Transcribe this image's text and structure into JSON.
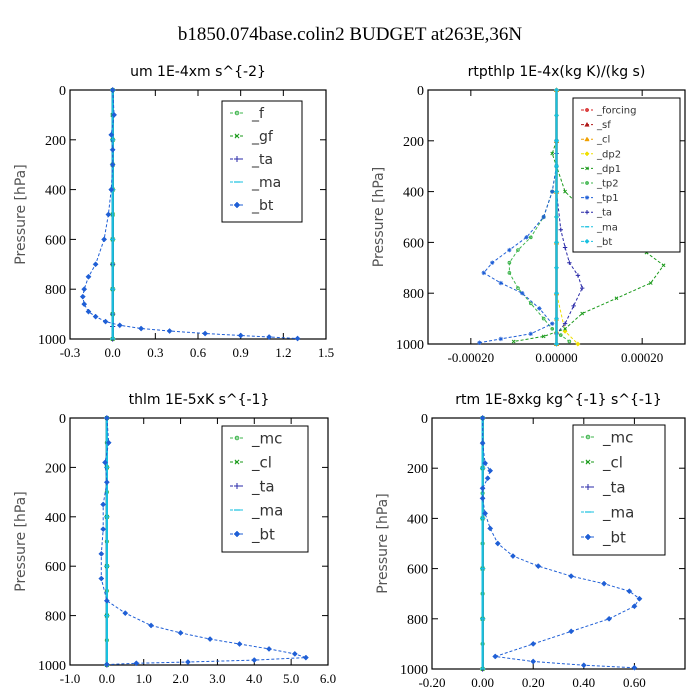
{
  "figure": {
    "title": "b1850.074base.colin2  BUDGET at263E,36N",
    "colors": {
      "green": "#3cb44b",
      "blue": "#1f5fd6",
      "navy": "#2a2aa8",
      "cyan": "#18c0e0",
      "red": "#d62020",
      "orange": "#f0a000",
      "yellow": "#f0e000",
      "darkgreen": "#1a9a1a"
    }
  },
  "chart_data": [
    {
      "type": "line",
      "title": "um  1E-4xm s^{-2}",
      "ylabel": "Pressure [hPa]",
      "xlim": [
        -0.3,
        1.5
      ],
      "ylim": [
        1000,
        0
      ],
      "xticks": [
        "-0.3",
        "0.0",
        "0.3",
        "0.6",
        "0.9",
        "1.2",
        "1.5"
      ],
      "xtick_values": [
        -0.3,
        0.0,
        0.3,
        0.6,
        0.9,
        1.2,
        1.5
      ],
      "yticks": [
        "0",
        "200",
        "400",
        "600",
        "800",
        "1000"
      ],
      "legend": {
        "position": "top-right",
        "entries": [
          "_f",
          "_gf",
          "_ta",
          "_ma",
          "_bt"
        ]
      },
      "series": [
        {
          "name": "_f",
          "color": "#3cb44b",
          "marker": "circle",
          "x": [
            0.0,
            0.0,
            0.0,
            0.0,
            0.0,
            0.0,
            0.0,
            0.0,
            0.0,
            0.0,
            0.0
          ],
          "y": [
            0,
            100,
            200,
            300,
            400,
            500,
            600,
            700,
            800,
            900,
            1000
          ]
        },
        {
          "name": "_gf",
          "color": "#1a9a1a",
          "marker": "x",
          "x": [
            0.0,
            0.0,
            0.0,
            0.0,
            0.0,
            0.0,
            0.0,
            0.0,
            0.0,
            0.0,
            0.0
          ],
          "y": [
            0,
            100,
            200,
            300,
            400,
            500,
            600,
            700,
            800,
            900,
            1000
          ]
        },
        {
          "name": "_ta",
          "color": "#2a2aa8",
          "marker": "plus",
          "x": [
            0.0,
            0.0,
            0.0,
            0.0,
            0.0,
            0.0,
            0.0,
            0.0,
            0.0
          ],
          "y": [
            0,
            200,
            400,
            600,
            700,
            800,
            900,
            950,
            1000
          ]
        },
        {
          "name": "_ma",
          "color": "#18c0e0",
          "marker": "dash",
          "x": [
            0.0,
            0.0,
            0.0,
            0.0,
            0.0,
            0.0
          ],
          "y": [
            0,
            200,
            400,
            600,
            800,
            1000
          ]
        },
        {
          "name": "_bt",
          "color": "#1f5fd6",
          "marker": "diamond",
          "x": [
            0.0,
            0.01,
            -0.01,
            0.0,
            0.0,
            -0.01,
            -0.03,
            -0.06,
            -0.12,
            -0.17,
            -0.2,
            -0.21,
            -0.2,
            -0.17,
            -0.12,
            -0.05,
            0.05,
            0.2,
            0.4,
            0.65,
            0.9,
            1.1,
            1.3
          ],
          "y": [
            0,
            100,
            180,
            240,
            300,
            400,
            500,
            600,
            700,
            750,
            800,
            830,
            860,
            890,
            910,
            930,
            945,
            958,
            968,
            978,
            986,
            992,
            998
          ]
        }
      ]
    },
    {
      "type": "line",
      "title": "rtpthlp  1E-4x(kg K)/(kg s)",
      "ylabel": "Pressure [hPa]",
      "xlim": [
        -0.0003,
        0.0003
      ],
      "ylim": [
        1000,
        0
      ],
      "xticks": [
        "-0.00020",
        "0.00000",
        "0.00020"
      ],
      "xtick_values": [
        -0.0002,
        0.0,
        0.0002
      ],
      "yticks": [
        "0",
        "200",
        "400",
        "600",
        "800",
        "1000"
      ],
      "legend": {
        "position": "top-right",
        "entries": [
          "_forcing",
          "_sf",
          "_cl",
          "_dp2",
          "_dp1",
          "_tp2",
          "_tp1",
          "_ta",
          "_ma",
          "_bt"
        ]
      },
      "series": [
        {
          "name": "_forcing",
          "color": "#d62020",
          "marker": "circle",
          "x": [
            0.0,
            0.0,
            0.0,
            0.0,
            0.0,
            0.0,
            0.0,
            0.0,
            0.0,
            0.0,
            0.0
          ],
          "y": [
            0,
            100,
            200,
            300,
            400,
            500,
            600,
            700,
            800,
            900,
            1000
          ]
        },
        {
          "name": "_sf",
          "color": "#b01818",
          "marker": "triangle",
          "x": [
            0.0,
            0.0,
            0.0,
            0.0,
            0.0,
            0.0
          ],
          "y": [
            0,
            200,
            400,
            600,
            800,
            1000
          ]
        },
        {
          "name": "_cl",
          "color": "#f0a000",
          "marker": "triangle",
          "x": [
            0.0,
            0.0,
            0.0,
            0.0,
            0.0,
            0.0,
            0.0,
            0.0
          ],
          "y": [
            0,
            200,
            400,
            600,
            800,
            900,
            950,
            1000
          ]
        },
        {
          "name": "_dp2",
          "color": "#f0e000",
          "marker": "diamond",
          "x": [
            0.0,
            0.0,
            0.0,
            0.0,
            0.0,
            0.0,
            0.0,
            0.0,
            0.0,
            2e-05,
            5e-05
          ],
          "y": [
            0,
            100,
            200,
            300,
            400,
            500,
            600,
            700,
            800,
            950,
            1000
          ]
        },
        {
          "name": "_dp1",
          "color": "#1a9a1a",
          "marker": "x",
          "x": [
            0.0,
            -1e-05,
            0.0,
            2e-05,
            5e-05,
            0.0001,
            0.00015,
            0.00021,
            0.00025,
            0.00022,
            0.00014,
            6e-05,
            2e-05,
            -3e-05,
            -0.0001
          ],
          "y": [
            200,
            250,
            300,
            400,
            450,
            520,
            580,
            640,
            690,
            760,
            820,
            880,
            940,
            970,
            990
          ]
        },
        {
          "name": "_tp2",
          "color": "#3cb44b",
          "marker": "circle",
          "x": [
            0.0,
            0.0,
            -1e-05,
            -3e-05,
            -6e-05,
            -9e-05,
            -0.00011,
            -0.00011,
            -9e-05,
            -6e-05,
            -3e-05,
            -1e-05,
            1e-05,
            3e-05
          ],
          "y": [
            200,
            300,
            400,
            500,
            580,
            630,
            680,
            720,
            780,
            840,
            900,
            940,
            965,
            990
          ]
        },
        {
          "name": "_tp1",
          "color": "#1f5fd6",
          "marker": "star",
          "x": [
            0.0,
            0.0,
            -1e-05,
            -3e-05,
            -7e-05,
            -0.00011,
            -0.00015,
            -0.00017,
            -0.00013,
            -8e-05,
            -4e-05,
            -1e-05,
            -6e-05,
            -0.00013,
            -0.00018
          ],
          "y": [
            200,
            300,
            400,
            500,
            580,
            630,
            680,
            720,
            760,
            800,
            860,
            920,
            960,
            980,
            995
          ]
        },
        {
          "name": "_ta",
          "color": "#2a2aa8",
          "marker": "plus",
          "x": [
            0.0,
            0.0,
            1e-05,
            2e-05,
            3e-05,
            5e-05,
            6e-05,
            4e-05,
            2e-05,
            0.0,
            0.0
          ],
          "y": [
            250,
            400,
            550,
            620,
            680,
            730,
            780,
            850,
            920,
            960,
            1000
          ]
        },
        {
          "name": "_ma",
          "color": "#18c0e0",
          "marker": "dash",
          "x": [
            0.0,
            0.0,
            0.0,
            0.0,
            0.0,
            0.0
          ],
          "y": [
            0,
            200,
            400,
            600,
            800,
            1000
          ]
        },
        {
          "name": "_bt",
          "color": "#18c0e0",
          "marker": "diamond",
          "x": [
            0.0,
            0.0,
            0.0,
            0.0,
            0.0,
            0.0,
            0.0,
            0.0,
            0.0,
            0.0,
            0.0
          ],
          "y": [
            0,
            100,
            200,
            300,
            400,
            500,
            600,
            700,
            800,
            900,
            1000
          ]
        }
      ]
    },
    {
      "type": "line",
      "title": "thlm  1E-5xK s^{-1}",
      "ylabel": "Pressure [hPa]",
      "xlim": [
        -1.0,
        6.0
      ],
      "ylim": [
        1000,
        0
      ],
      "xticks": [
        "-1.0",
        "0.0",
        "1.0",
        "2.0",
        "3.0",
        "4.0",
        "5.0",
        "6.0"
      ],
      "xtick_values": [
        -1.0,
        0.0,
        1.0,
        2.0,
        3.0,
        4.0,
        5.0,
        6.0
      ],
      "yticks": [
        "0",
        "200",
        "400",
        "600",
        "800",
        "1000"
      ],
      "legend": {
        "position": "top-right",
        "entries": [
          "_mc",
          "_cl",
          "_ta",
          "_ma",
          "_bt"
        ]
      },
      "series": [
        {
          "name": "_mc",
          "color": "#3cb44b",
          "marker": "circle",
          "x": [
            0.0,
            0.0,
            0.0,
            0.0,
            0.0,
            0.0,
            0.0,
            0.0,
            0.0,
            0.0,
            0.0
          ],
          "y": [
            0,
            100,
            200,
            300,
            400,
            500,
            600,
            700,
            800,
            900,
            1000
          ]
        },
        {
          "name": "_cl",
          "color": "#1a9a1a",
          "marker": "x",
          "x": [
            0.0,
            0.0,
            0.0,
            0.0,
            0.0,
            0.0
          ],
          "y": [
            0,
            200,
            400,
            600,
            800,
            1000
          ]
        },
        {
          "name": "_ta",
          "color": "#2a2aa8",
          "marker": "plus",
          "x": [
            0.0,
            0.0,
            0.0,
            0.0,
            0.0,
            0.0
          ],
          "y": [
            0,
            200,
            400,
            600,
            800,
            1000
          ]
        },
        {
          "name": "_ma",
          "color": "#18c0e0",
          "marker": "dash",
          "x": [
            0.0,
            0.0,
            0.0,
            0.0,
            0.0,
            0.0
          ],
          "y": [
            0,
            200,
            400,
            600,
            800,
            1000
          ]
        },
        {
          "name": "_bt",
          "color": "#1f5fd6",
          "marker": "diamond",
          "x": [
            0.0,
            0.05,
            -0.05,
            0.0,
            -0.1,
            -0.1,
            -0.15,
            -0.15,
            0.0,
            0.5,
            1.2,
            2.0,
            2.8,
            3.6,
            4.4,
            5.1,
            5.4,
            4.0,
            2.2,
            0.8,
            0.0
          ],
          "y": [
            0,
            100,
            180,
            260,
            350,
            450,
            550,
            650,
            740,
            790,
            840,
            870,
            895,
            915,
            935,
            955,
            970,
            980,
            988,
            993,
            998
          ]
        }
      ]
    },
    {
      "type": "line",
      "title": "rtm  1E-8xkg kg^{-1} s^{-1}",
      "ylabel": "Pressure [hPa]",
      "xlim": [
        -0.2,
        0.8
      ],
      "ylim": [
        1000,
        0
      ],
      "xticks": [
        "-0.20",
        "0.00",
        "0.20",
        "0.40",
        "0.60"
      ],
      "xtick_values": [
        -0.2,
        0.0,
        0.2,
        0.4,
        0.6
      ],
      "yticks": [
        "0",
        "200",
        "400",
        "600",
        "800",
        "1000"
      ],
      "legend": {
        "position": "top-right",
        "entries": [
          "_mc",
          "_cl",
          "_ta",
          "_ma",
          "_bt"
        ]
      },
      "series": [
        {
          "name": "_mc",
          "color": "#3cb44b",
          "marker": "circle",
          "x": [
            0.0,
            0.0,
            0.0,
            0.0,
            0.0,
            0.0,
            0.0,
            0.0,
            0.0,
            0.0,
            0.0
          ],
          "y": [
            0,
            100,
            200,
            300,
            400,
            500,
            600,
            700,
            800,
            900,
            1000
          ]
        },
        {
          "name": "_cl",
          "color": "#1a9a1a",
          "marker": "x",
          "x": [
            0.0,
            0.0,
            0.0,
            0.0,
            0.0,
            0.0
          ],
          "y": [
            0,
            200,
            400,
            600,
            800,
            1000
          ]
        },
        {
          "name": "_ta",
          "color": "#2a2aa8",
          "marker": "plus",
          "x": [
            0.0,
            0.0,
            0.0,
            0.0,
            0.0,
            0.0
          ],
          "y": [
            0,
            200,
            400,
            600,
            800,
            1000
          ]
        },
        {
          "name": "_ma",
          "color": "#18c0e0",
          "marker": "dash",
          "x": [
            0.0,
            0.0,
            0.0,
            0.0,
            0.0,
            0.0
          ],
          "y": [
            0,
            200,
            400,
            600,
            800,
            1000
          ]
        },
        {
          "name": "_bt",
          "color": "#1f5fd6",
          "marker": "diamond",
          "x": [
            0.0,
            0.0,
            0.01,
            0.03,
            0.02,
            0.0,
            0.0,
            0.01,
            0.03,
            0.06,
            0.12,
            0.22,
            0.35,
            0.48,
            0.58,
            0.62,
            0.6,
            0.5,
            0.35,
            0.2,
            0.05,
            0.2,
            0.4,
            0.6
          ],
          "y": [
            0,
            100,
            180,
            210,
            240,
            280,
            320,
            380,
            440,
            500,
            550,
            590,
            630,
            660,
            690,
            720,
            750,
            800,
            850,
            900,
            950,
            970,
            985,
            995
          ]
        }
      ]
    }
  ]
}
